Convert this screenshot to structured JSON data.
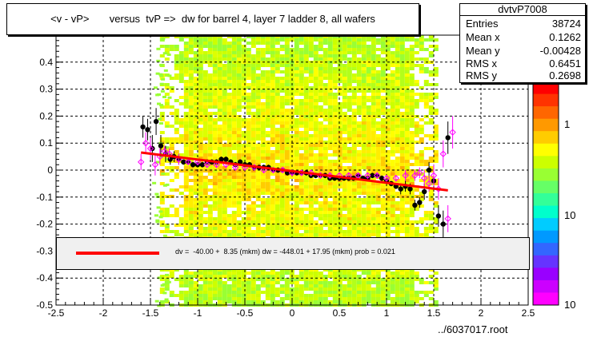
{
  "title_box": {
    "text": "<v - vP>       versus  tvP =>  dw for barrel 4, layer 7 ladder 8, all wafers"
  },
  "stats": {
    "name": "dvtvP7008",
    "rows": [
      {
        "key": "Entries",
        "value": "38724"
      },
      {
        "key": "Mean x",
        "value": "0.1262"
      },
      {
        "key": "Mean y",
        "value": "-0.00428"
      },
      {
        "key": "RMS x",
        "value": "0.6451"
      },
      {
        "key": "RMS y",
        "value": "0.2698"
      }
    ]
  },
  "fit_legend": {
    "text": "dv =  -40.00 +  8.35 (mkm) dw = -448.01 + 17.95 (mkm) prob = 0.021",
    "line_color": "#ff0000"
  },
  "file_label": "../6037017.root",
  "chart_data": {
    "type": "scatter",
    "title": "<v - vP>       versus  tvP =>  dw for barrel 4, layer 7 ladder 8, all wafers",
    "xlim": [
      -2.5,
      2.5
    ],
    "ylim": [
      -0.5,
      0.5
    ],
    "x_ticks": [
      "-2.5",
      "-2",
      "-1.5",
      "-1",
      "-0.5",
      "0",
      "0.5",
      "1",
      "1.5",
      "2",
      "2.5"
    ],
    "y_ticks": [
      "-0.5",
      "-0.4",
      "-0.3",
      "-0.2",
      "-0.1",
      "0",
      "0.1",
      "0.2",
      "0.3",
      "0.4"
    ],
    "grid": true,
    "density_band": {
      "x_range": [
        -1.4,
        1.5
      ],
      "y_range": [
        -0.5,
        0.5
      ]
    },
    "colorbar": {
      "labels": [
        "1",
        "10",
        "10"
      ]
    },
    "series": [
      {
        "marker": "filled-circle",
        "color": "#000000",
        "points": [
          [
            -1.58,
            0.16,
            0.04
          ],
          [
            -1.53,
            0.15,
            0.04
          ],
          [
            -1.48,
            0.08,
            0.05
          ],
          [
            -1.44,
            0.18,
            0.05
          ],
          [
            -1.39,
            0.09,
            0.04
          ],
          [
            -1.34,
            0.06,
            0.03
          ],
          [
            -1.29,
            0.04,
            0.02
          ],
          [
            -1.25,
            0.05,
            0.02
          ],
          [
            -1.2,
            0.04,
            0.02
          ],
          [
            -1.15,
            0.03,
            0.01
          ],
          [
            -1.1,
            0.03,
            0.01
          ],
          [
            -1.05,
            0.02,
            0.01
          ],
          [
            -1.0,
            0.02,
            0.01
          ],
          [
            -0.95,
            0.02,
            0.01
          ],
          [
            -0.9,
            0.03,
            0.01
          ],
          [
            -0.85,
            0.03,
            0.01
          ],
          [
            -0.8,
            0.03,
            0.01
          ],
          [
            -0.75,
            0.04,
            0.01
          ],
          [
            -0.7,
            0.04,
            0.01
          ],
          [
            -0.65,
            0.03,
            0.01
          ],
          [
            -0.6,
            0.02,
            0.01
          ],
          [
            -0.55,
            0.03,
            0.01
          ],
          [
            -0.5,
            0.02,
            0.01
          ],
          [
            -0.45,
            0.02,
            0.01
          ],
          [
            -0.4,
            0.01,
            0.01
          ],
          [
            -0.35,
            0.01,
            0.01
          ],
          [
            -0.3,
            0.01,
            0.01
          ],
          [
            -0.25,
            0.01,
            0.01
          ],
          [
            -0.2,
            0.0,
            0.01
          ],
          [
            -0.15,
            0.0,
            0.01
          ],
          [
            -0.1,
            0.0,
            0.01
          ],
          [
            -0.05,
            -0.01,
            0.01
          ],
          [
            0.0,
            -0.01,
            0.01
          ],
          [
            0.05,
            -0.01,
            0.01
          ],
          [
            0.1,
            -0.01,
            0.01
          ],
          [
            0.15,
            -0.01,
            0.01
          ],
          [
            0.2,
            -0.02,
            0.01
          ],
          [
            0.25,
            -0.02,
            0.01
          ],
          [
            0.3,
            -0.02,
            0.01
          ],
          [
            0.35,
            -0.02,
            0.01
          ],
          [
            0.4,
            -0.03,
            0.01
          ],
          [
            0.45,
            -0.03,
            0.01
          ],
          [
            0.5,
            -0.03,
            0.01
          ],
          [
            0.55,
            -0.03,
            0.01
          ],
          [
            0.6,
            -0.03,
            0.01
          ],
          [
            0.65,
            -0.03,
            0.01
          ],
          [
            0.7,
            -0.02,
            0.01
          ],
          [
            0.75,
            -0.03,
            0.01
          ],
          [
            0.8,
            -0.03,
            0.01
          ],
          [
            0.85,
            -0.02,
            0.01
          ],
          [
            0.9,
            -0.02,
            0.01
          ],
          [
            0.95,
            -0.03,
            0.01
          ],
          [
            1.0,
            -0.04,
            0.01
          ],
          [
            1.05,
            -0.05,
            0.01
          ],
          [
            1.1,
            -0.06,
            0.01
          ],
          [
            1.15,
            -0.07,
            0.02
          ],
          [
            1.2,
            -0.06,
            0.02
          ],
          [
            1.25,
            -0.07,
            0.02
          ],
          [
            1.3,
            -0.13,
            0.02
          ],
          [
            1.35,
            -0.12,
            0.02
          ],
          [
            1.4,
            -0.08,
            0.03
          ],
          [
            1.45,
            0.0,
            0.03
          ],
          [
            1.5,
            -0.04,
            0.04
          ],
          [
            1.55,
            -0.17,
            0.04
          ],
          [
            1.6,
            -0.2,
            0.05
          ],
          [
            1.65,
            0.12,
            0.06
          ]
        ]
      },
      {
        "marker": "open-diamond",
        "color": "#ff00ff",
        "points": [
          [
            -1.6,
            0.03,
            0.03
          ],
          [
            -1.55,
            0.1,
            0.04
          ],
          [
            -1.5,
            0.08,
            0.04
          ],
          [
            -1.45,
            0.02,
            0.04
          ],
          [
            -1.4,
            0.05,
            0.03
          ],
          [
            -1.35,
            0.07,
            0.02
          ],
          [
            -1.3,
            0.06,
            0.02
          ],
          [
            -1.2,
            0.04,
            0.02
          ],
          [
            -1.1,
            0.03,
            0.01
          ],
          [
            -1.0,
            0.03,
            0.01
          ],
          [
            -0.9,
            0.02,
            0.01
          ],
          [
            -0.8,
            0.02,
            0.01
          ],
          [
            -0.7,
            0.02,
            0.01
          ],
          [
            -0.6,
            0.01,
            0.01
          ],
          [
            -0.5,
            0.01,
            0.01
          ],
          [
            -0.4,
            0.01,
            0.01
          ],
          [
            -0.3,
            0.0,
            0.01
          ],
          [
            -0.2,
            0.0,
            0.01
          ],
          [
            -0.1,
            0.0,
            0.01
          ],
          [
            0.0,
            -0.01,
            0.01
          ],
          [
            0.1,
            -0.01,
            0.01
          ],
          [
            0.2,
            -0.01,
            0.01
          ],
          [
            0.3,
            -0.02,
            0.01
          ],
          [
            0.4,
            -0.02,
            0.01
          ],
          [
            0.5,
            -0.02,
            0.01
          ],
          [
            0.6,
            -0.02,
            0.01
          ],
          [
            0.7,
            -0.02,
            0.01
          ],
          [
            0.8,
            -0.02,
            0.01
          ],
          [
            0.9,
            -0.02,
            0.01
          ],
          [
            1.0,
            -0.03,
            0.01
          ],
          [
            1.1,
            -0.03,
            0.01
          ],
          [
            1.2,
            -0.02,
            0.02
          ],
          [
            1.3,
            -0.02,
            0.02
          ],
          [
            1.35,
            -0.01,
            0.02
          ],
          [
            1.4,
            -0.03,
            0.03
          ],
          [
            1.45,
            -0.05,
            0.03
          ],
          [
            1.5,
            -0.02,
            0.04
          ],
          [
            1.55,
            -0.07,
            0.04
          ],
          [
            1.6,
            0.06,
            0.05
          ],
          [
            1.65,
            -0.18,
            0.05
          ],
          [
            1.7,
            0.14,
            0.06
          ]
        ]
      }
    ],
    "fit": {
      "x": [
        -1.6,
        1.65
      ],
      "y": [
        0.065,
        -0.075
      ],
      "color": "#ff0000"
    }
  }
}
